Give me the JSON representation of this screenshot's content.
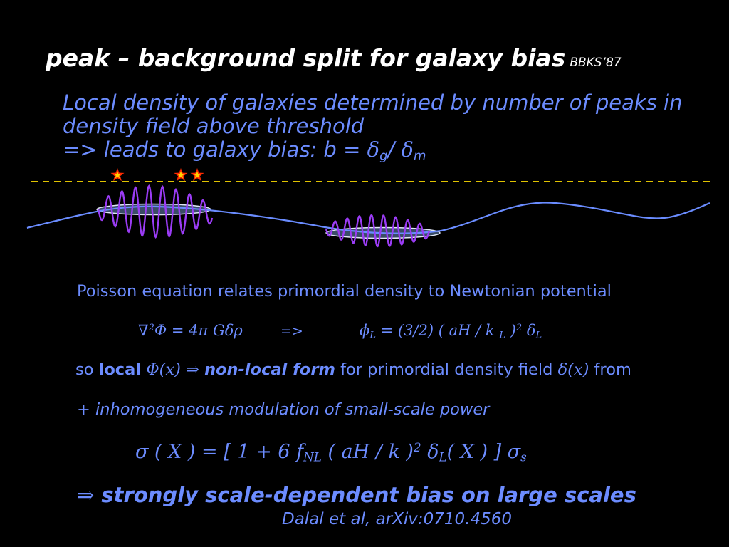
{
  "title": {
    "text": "peak – background split for galaxy bias",
    "ref": "BBKS’87"
  },
  "intro": {
    "line1": "Local density of galaxies determined by number of peaks in",
    "line2": "density field above threshold",
    "line3_prefix": "=> leads to galaxy bias: b = ",
    "delta": "δ",
    "sub_g": "g",
    "slash": "/ ",
    "sub_m": "m"
  },
  "figure": {
    "icons": [
      "threshold-line",
      "star-icon",
      "star-icon",
      "star-icon",
      "density-curve",
      "peak-oscillation",
      "peak-oscillation",
      "region-ellipse",
      "region-ellipse"
    ],
    "colors": {
      "threshold": "#ffdd00",
      "density": "#6a8cff",
      "oscillation": "#9b3cf5",
      "star_outer": "#ff2a00",
      "star_inner": "#ffd400",
      "ellipse_fill": "#3a4d66"
    }
  },
  "poisson_text": "Poisson equation relates primordial density to Newtonian potential",
  "eq1": {
    "nabla": "∇",
    "sq": "2",
    "body": "Φ  = 4π Gδρ"
  },
  "arrow_text": "=>",
  "eq2": {
    "phi": "ϕ",
    "L": "L",
    "mid": " = (3/2) ( aH / k ",
    "L2": "L",
    "close": " )",
    "sq": "2",
    "delta": " δ",
    "L3": "L"
  },
  "local_line": {
    "so": "so ",
    "local": "local",
    "phi_x": " Φ(x) ",
    "implies": "⇒ ",
    "nonlocal": "non-local form",
    "rest": " for primordial density field ",
    "delta_x": "δ(x)",
    "from": " from"
  },
  "inhom_text": "+ inhomogeneous modulation of small-scale power",
  "sigma_eq": {
    "part1": "σ ( X ) = [ 1 + 6 f",
    "NL": "NL",
    "part2": " ( aH / k )",
    "sq": "2",
    "part3": " δ",
    "L": "L",
    "part4": "( X ) ]  σ",
    "s": "s"
  },
  "conclusion": {
    "arrow": "⇒",
    "text": "strongly scale-dependent bias on large scales"
  },
  "citation": "Dalal et al, arXiv:0710.4560"
}
